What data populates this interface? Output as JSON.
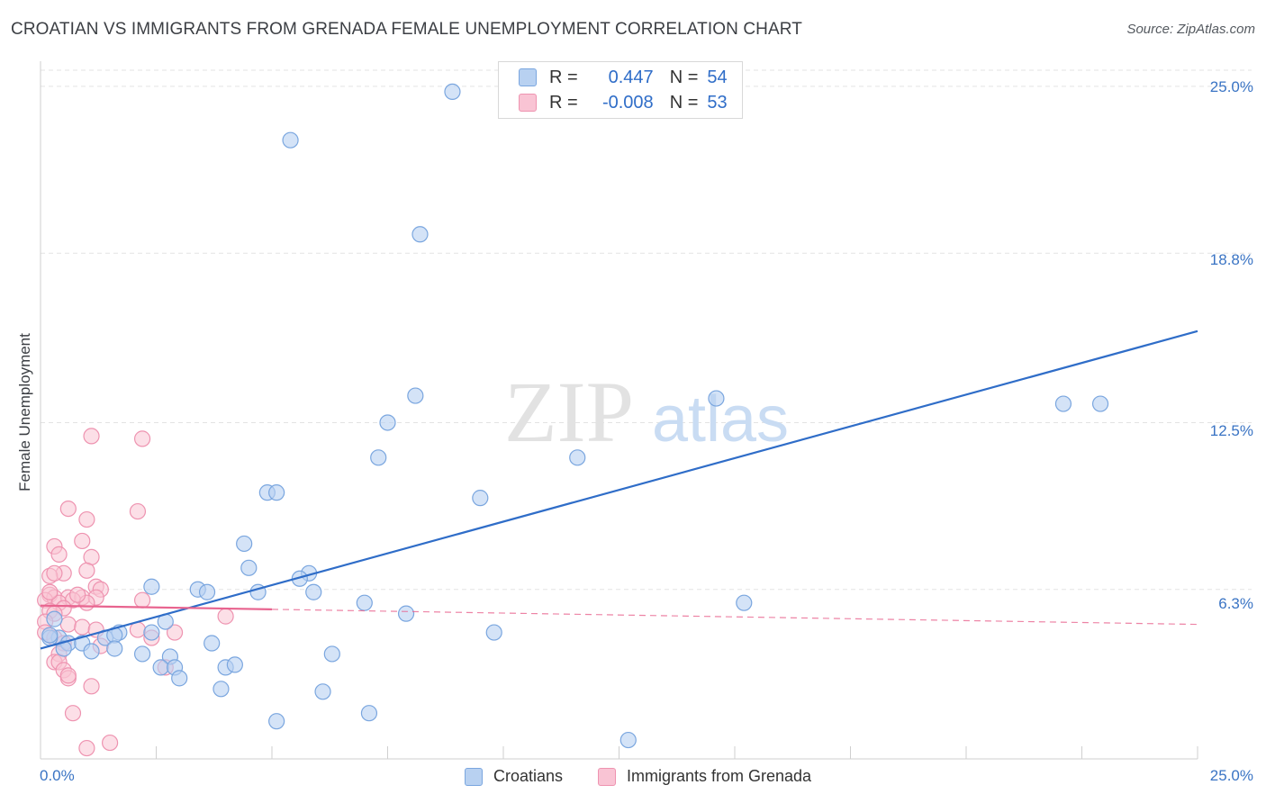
{
  "header": {
    "title": "CROATIAN VS IMMIGRANTS FROM GRENADA FEMALE UNEMPLOYMENT CORRELATION CHART",
    "source": "Source: ZipAtlas.com"
  },
  "watermark": {
    "zip": "ZIP",
    "atlas": "atlas"
  },
  "legend": {
    "rows": [
      {
        "r_label": "R =",
        "r_value": "0.447",
        "n_label": "N =",
        "n_value": "54"
      },
      {
        "r_label": "R =",
        "r_value": "-0.008",
        "n_label": "N =",
        "n_value": "53"
      }
    ]
  },
  "colors": {
    "blue": "#2f6dc8",
    "pink": "#e8648f",
    "blue_fill": "#b8d1f1",
    "pink_fill": "#f9c4d4"
  },
  "chart_data": {
    "type": "scatter",
    "title": "CROATIAN VS IMMIGRANTS FROM GRENADA FEMALE UNEMPLOYMENT CORRELATION CHART",
    "xlabel": "",
    "ylabel": "Female Unemployment",
    "xlim": [
      0,
      25
    ],
    "ylim": [
      0,
      25.6
    ],
    "x_tick_labels": [
      "0.0%",
      "25.0%"
    ],
    "y_ticks": [
      6.3,
      12.5,
      18.8,
      25.0
    ],
    "y_tick_labels": [
      "6.3%",
      "12.5%",
      "18.8%",
      "25.0%"
    ],
    "grid": true,
    "legend_position": "top-center",
    "series": [
      {
        "name": "Croatians",
        "r": 0.447,
        "n": 54,
        "trend": {
          "x": [
            0.0,
            25.0
          ],
          "y": [
            4.1,
            15.9
          ],
          "style": "solid"
        },
        "points": [
          [
            8.9,
            24.8
          ],
          [
            5.4,
            23.0
          ],
          [
            8.2,
            19.5
          ],
          [
            8.1,
            13.5
          ],
          [
            7.5,
            12.5
          ],
          [
            7.3,
            11.2
          ],
          [
            11.6,
            11.2
          ],
          [
            9.5,
            9.7
          ],
          [
            4.9,
            9.9
          ],
          [
            5.1,
            9.9
          ],
          [
            14.6,
            13.4
          ],
          [
            22.1,
            13.2
          ],
          [
            22.9,
            13.2
          ],
          [
            4.4,
            8.0
          ],
          [
            4.5,
            7.1
          ],
          [
            5.8,
            6.9
          ],
          [
            5.6,
            6.7
          ],
          [
            2.4,
            6.4
          ],
          [
            3.4,
            6.3
          ],
          [
            3.6,
            6.2
          ],
          [
            4.7,
            6.2
          ],
          [
            5.9,
            6.2
          ],
          [
            7.0,
            5.8
          ],
          [
            15.2,
            5.8
          ],
          [
            7.9,
            5.4
          ],
          [
            2.7,
            5.1
          ],
          [
            1.7,
            4.7
          ],
          [
            2.4,
            4.7
          ],
          [
            1.4,
            4.5
          ],
          [
            1.6,
            4.6
          ],
          [
            0.4,
            4.5
          ],
          [
            0.6,
            4.3
          ],
          [
            0.9,
            4.3
          ],
          [
            0.2,
            4.5
          ],
          [
            1.6,
            4.1
          ],
          [
            3.7,
            4.3
          ],
          [
            9.8,
            4.7
          ],
          [
            0.5,
            4.1
          ],
          [
            1.1,
            4.0
          ],
          [
            2.2,
            3.9
          ],
          [
            2.8,
            3.8
          ],
          [
            6.3,
            3.9
          ],
          [
            2.6,
            3.4
          ],
          [
            2.9,
            3.4
          ],
          [
            4.0,
            3.4
          ],
          [
            4.2,
            3.5
          ],
          [
            3.0,
            3.0
          ],
          [
            3.9,
            2.6
          ],
          [
            6.1,
            2.5
          ],
          [
            5.1,
            1.4
          ],
          [
            7.1,
            1.7
          ],
          [
            12.7,
            0.7
          ],
          [
            0.3,
            5.2
          ],
          [
            0.2,
            4.6
          ]
        ]
      },
      {
        "name": "Immigrants from Grenada",
        "r": -0.008,
        "n": 53,
        "trend": {
          "x": [
            0.0,
            25.0
          ],
          "y": [
            5.7,
            5.0
          ],
          "solid_until": 5.0,
          "style": "solid-then-dashed"
        },
        "points": [
          [
            1.1,
            12.0
          ],
          [
            2.2,
            11.9
          ],
          [
            0.6,
            9.3
          ],
          [
            2.1,
            9.2
          ],
          [
            1.0,
            8.9
          ],
          [
            0.9,
            8.1
          ],
          [
            0.3,
            7.9
          ],
          [
            0.4,
            7.6
          ],
          [
            1.1,
            7.5
          ],
          [
            1.0,
            7.0
          ],
          [
            0.5,
            6.9
          ],
          [
            0.2,
            6.8
          ],
          [
            0.3,
            6.9
          ],
          [
            1.2,
            6.4
          ],
          [
            1.3,
            6.3
          ],
          [
            0.2,
            6.1
          ],
          [
            0.3,
            6.0
          ],
          [
            0.6,
            6.0
          ],
          [
            0.9,
            6.0
          ],
          [
            1.2,
            6.0
          ],
          [
            2.2,
            5.9
          ],
          [
            0.1,
            5.9
          ],
          [
            0.4,
            5.8
          ],
          [
            0.7,
            5.9
          ],
          [
            1.0,
            5.8
          ],
          [
            0.2,
            5.5
          ],
          [
            0.5,
            5.6
          ],
          [
            0.3,
            5.4
          ],
          [
            4.0,
            5.3
          ],
          [
            0.1,
            5.1
          ],
          [
            0.6,
            5.0
          ],
          [
            0.9,
            4.9
          ],
          [
            1.2,
            4.8
          ],
          [
            2.1,
            4.8
          ],
          [
            2.9,
            4.7
          ],
          [
            0.1,
            4.7
          ],
          [
            0.3,
            4.5
          ],
          [
            0.5,
            4.3
          ],
          [
            1.3,
            4.2
          ],
          [
            2.4,
            4.5
          ],
          [
            0.4,
            3.9
          ],
          [
            0.3,
            3.6
          ],
          [
            0.4,
            3.6
          ],
          [
            0.5,
            3.3
          ],
          [
            0.6,
            3.0
          ],
          [
            1.1,
            2.7
          ],
          [
            0.7,
            1.7
          ],
          [
            1.0,
            0.4
          ],
          [
            1.5,
            0.6
          ],
          [
            2.7,
            3.4
          ],
          [
            0.2,
            6.2
          ],
          [
            0.8,
            6.1
          ],
          [
            0.6,
            3.1
          ]
        ]
      }
    ]
  },
  "bottom_legend": {
    "series_a": "Croatians",
    "series_b": "Immigrants from Grenada"
  }
}
